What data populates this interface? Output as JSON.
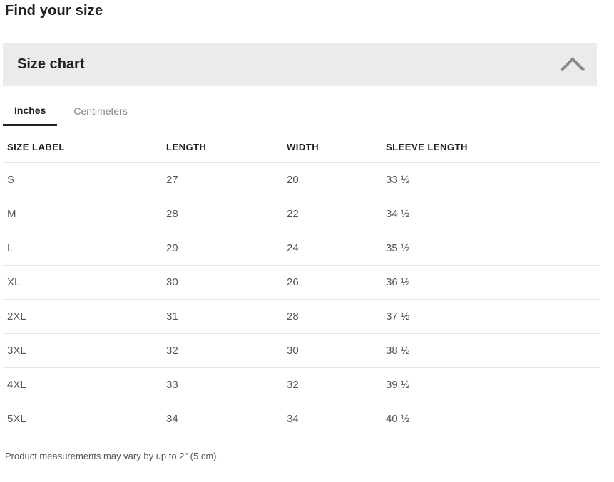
{
  "page_title": "Find your size",
  "panel": {
    "title": "Size chart",
    "state": "expanded",
    "chevron_icon": "chevron-up"
  },
  "tabs": {
    "items": [
      {
        "label": "Inches",
        "active": true
      },
      {
        "label": "Centimeters",
        "active": false
      }
    ]
  },
  "table": {
    "unit": "Inches",
    "columns": [
      "SIZE LABEL",
      "LENGTH",
      "WIDTH",
      "SLEEVE LENGTH"
    ],
    "rows": [
      [
        "S",
        "27",
        "20",
        "33 ½"
      ],
      [
        "M",
        "28",
        "22",
        "34 ½"
      ],
      [
        "L",
        "29",
        "24",
        "35 ½"
      ],
      [
        "XL",
        "30",
        "26",
        "36 ½"
      ],
      [
        "2XL",
        "31",
        "28",
        "37 ½"
      ],
      [
        "3XL",
        "32",
        "30",
        "38 ½"
      ],
      [
        "4XL",
        "33",
        "32",
        "39 ½"
      ],
      [
        "5XL",
        "34",
        "34",
        "40 ½"
      ]
    ]
  },
  "footer": {
    "note": "Product measurements may vary by up to 2\" (5 cm)."
  },
  "colors": {
    "heading_text": "#222222",
    "panel_background": "#ebebeb",
    "chevron": "#8a8a8a",
    "active_tab_underline": "#222222",
    "inactive_tab_text": "#7f7f7f",
    "cell_text": "#555555",
    "divider": "#e4e4e4"
  }
}
